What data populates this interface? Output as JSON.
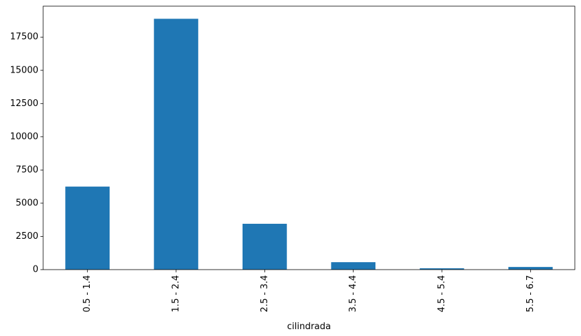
{
  "chart_data": {
    "type": "bar",
    "categories": [
      "0.5 - 1.4",
      "1.5 - 2.4",
      "2.5 - 3.4",
      "3.5 - 4.4",
      "4.5 - 5.4",
      "5.5 - 6.7"
    ],
    "values": [
      6250,
      18880,
      3450,
      560,
      100,
      200
    ],
    "title": "",
    "xlabel": "cilindrada",
    "ylabel": "",
    "ylim": [
      0,
      19830
    ],
    "yticks": [
      0,
      2500,
      5000,
      7500,
      10000,
      12500,
      15000,
      17500
    ],
    "bar_color": "#1f77b4",
    "grid": false,
    "legend": "none"
  }
}
